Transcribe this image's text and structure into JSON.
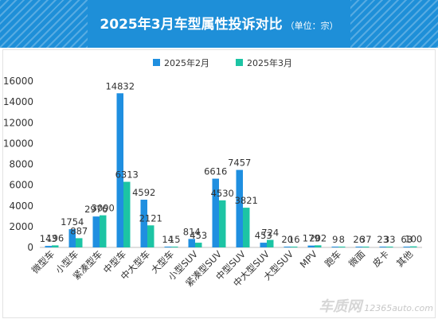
{
  "header": {
    "title": "2025年3月车型属性投诉对比",
    "subtitle": "（单位：宗）"
  },
  "colors": {
    "banner": "#1e8fd8",
    "series_feb": "#1f8fe0",
    "series_mar": "#1cc4a4",
    "axis": "#bfbfbf",
    "text": "#333333"
  },
  "watermark": {
    "logo": "车质网",
    "domain": "12365auto.com"
  },
  "chart_data": {
    "type": "bar",
    "title": "",
    "xlabel": "",
    "ylabel": "",
    "ylim": [
      0,
      16000
    ],
    "yticks": [
      0,
      2000,
      4000,
      6000,
      8000,
      10000,
      12000,
      14000,
      16000
    ],
    "grid": false,
    "legend": "top",
    "categories": [
      "微型车",
      "小型车",
      "紧凑型车",
      "中型车",
      "中大型车",
      "大型车",
      "小型SUV",
      "紧凑型SUV",
      "中型SUV",
      "中大型SUV",
      "大型SUV",
      "MPV",
      "跑车",
      "微面",
      "皮卡",
      "其他"
    ],
    "series": [
      {
        "name": "2025年2月",
        "color": "#1f8fe0",
        "values": [
          143,
          1754,
          2976,
          14832,
          4592,
          14,
          814,
          6616,
          7457,
          453,
          20,
          179,
          9,
          26,
          23,
          63
        ]
      },
      {
        "name": "2025年3月",
        "color": "#1cc4a4",
        "values": [
          196,
          887,
          3090,
          6313,
          2121,
          15,
          453,
          4530,
          3821,
          724,
          16,
          202,
          8,
          37,
          33,
          100
        ]
      }
    ]
  }
}
